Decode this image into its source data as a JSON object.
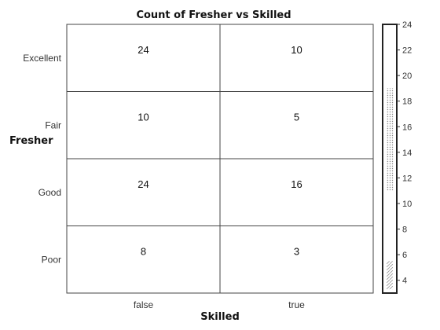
{
  "chart_data": {
    "type": "heatmap",
    "title": "Count of Fresher vs Skilled",
    "xlabel": "Skilled",
    "ylabel": "Fresher",
    "x_categories": [
      "false",
      "true"
    ],
    "y_categories": [
      "Excellent",
      "Fair",
      "Good",
      "Poor"
    ],
    "values": [
      [
        24,
        10
      ],
      [
        10,
        5
      ],
      [
        24,
        16
      ],
      [
        8,
        3
      ]
    ],
    "colorbar": {
      "range": [
        3,
        24
      ],
      "ticks": [
        4,
        6,
        8,
        10,
        12,
        14,
        16,
        18,
        20,
        22,
        24
      ]
    }
  }
}
